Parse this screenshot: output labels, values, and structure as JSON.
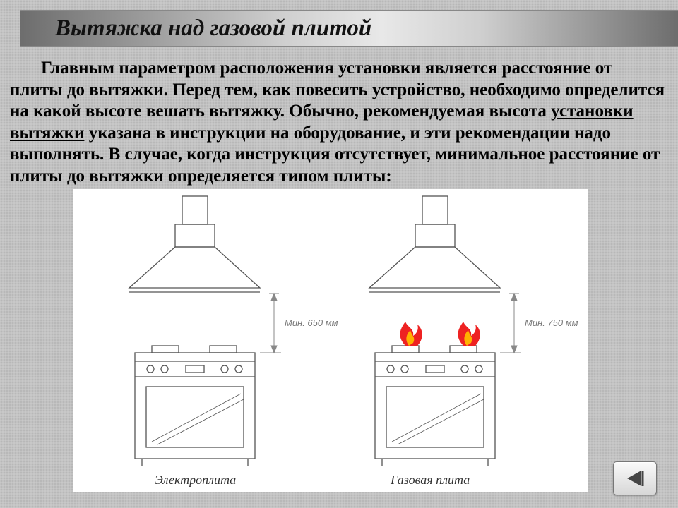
{
  "title": "Вытяжка над газовой плитой",
  "paragraph": "Главным параметром расположения установки является расстояние от плиты до вытяжки. Перед тем, как повесить устройство, необходимо определится на какой высоте вешать вытяжку. Обычно, рекомендуемая высота установки вытяжки указана в инструкции на оборудование, и эти рекомендации надо выполнять. В случае, когда инструкция отсутствует, минимальное расстояние от плиты до вытяжки определяется типом плиты:",
  "underlined_phrase": "установки вытяжки",
  "diagram": {
    "type": "diagram",
    "background_color": "#ffffff",
    "stroke_color": "#555555",
    "dim_color": "#888888",
    "label_color": "#7a7a7a",
    "caption_color": "#333333",
    "flame_outer_color": "#e22222",
    "flame_inner_color": "#ffb100",
    "panels": [
      {
        "id": "electric",
        "caption": "Электроплита",
        "dimension_label": "Мин. 650 мм",
        "has_flames": false
      },
      {
        "id": "gas",
        "caption": "Газовая плита",
        "dimension_label": "Мин. 750 мм",
        "has_flames": true
      }
    ]
  },
  "nav": {
    "back_icon": "back-triangle-icon"
  }
}
